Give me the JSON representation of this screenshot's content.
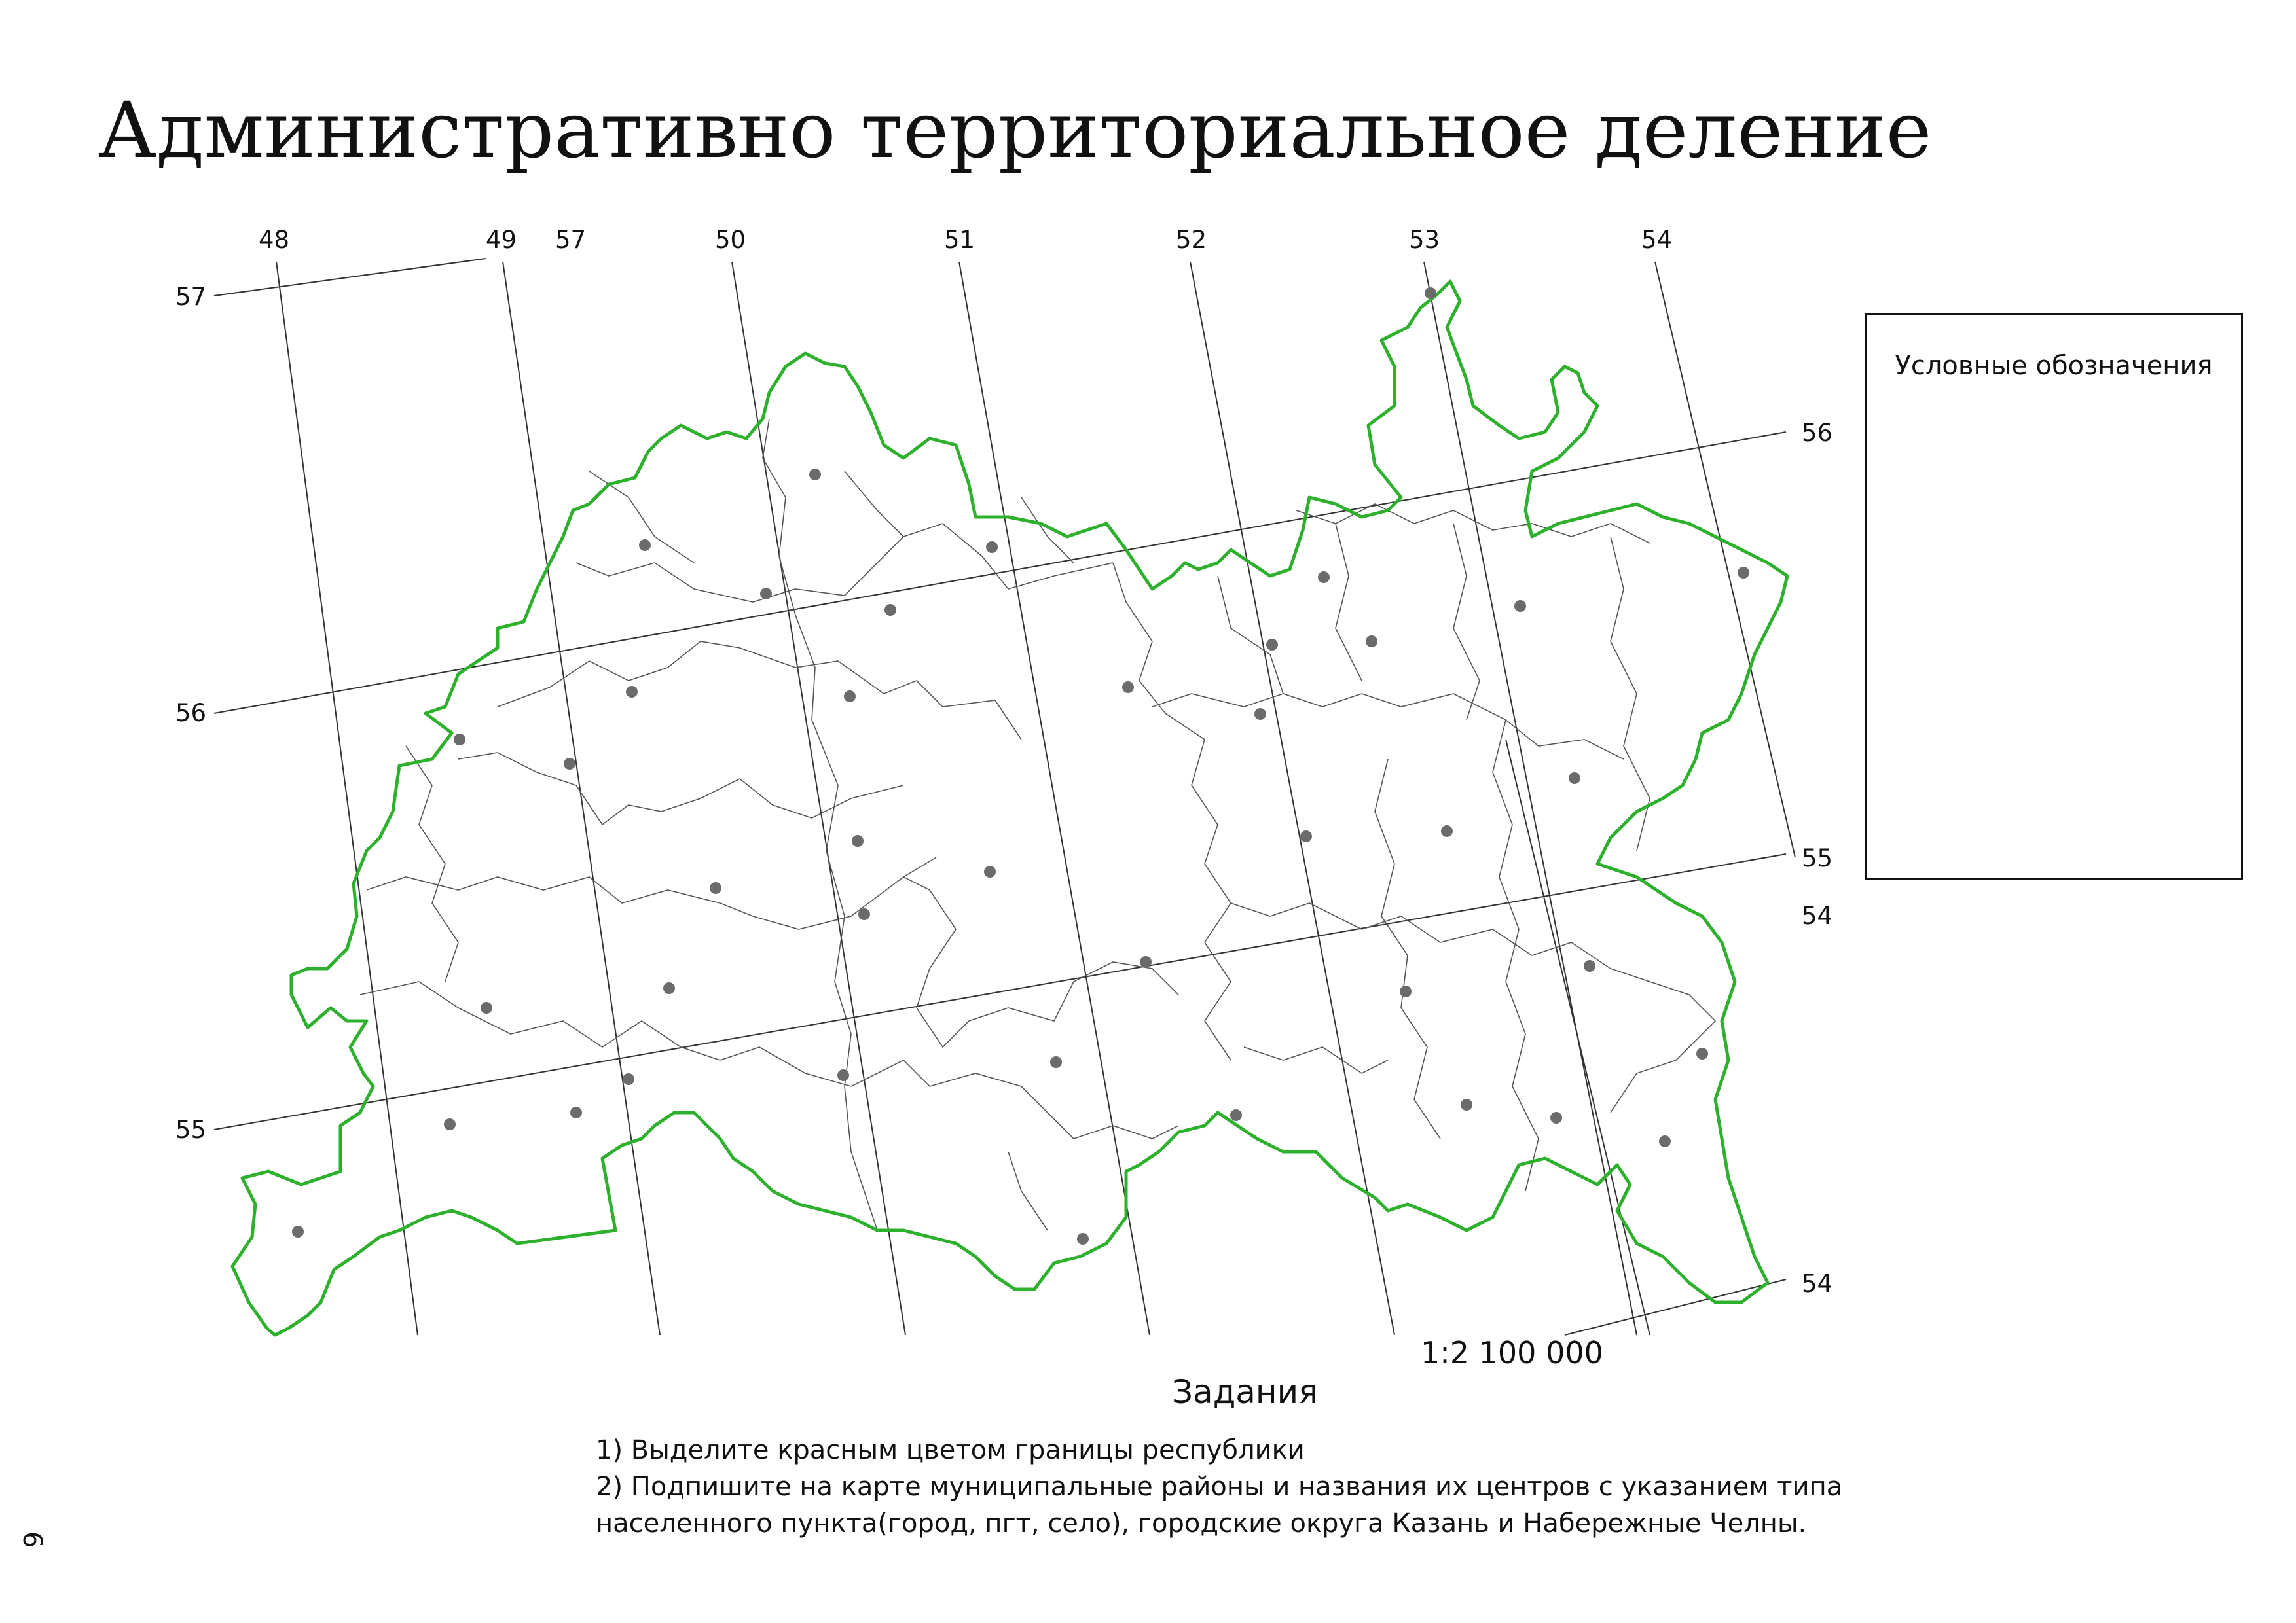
{
  "title": "Административно территориальное деление",
  "colors": {
    "border": "#2db12d",
    "grid": "#333333",
    "districts": "#555555",
    "centers": "#6b6b6b"
  },
  "longitude_labels": [
    "48",
    "49",
    "57",
    "50",
    "51",
    "52",
    "53",
    "54"
  ],
  "latitude_labels": {
    "left": [
      "57",
      "56",
      "55"
    ],
    "right": [
      "56",
      "55",
      "54",
      "54"
    ]
  },
  "legend": {
    "title": "Условные обозначения"
  },
  "scale": "1:2 100 000",
  "tasks": {
    "title": "Задания",
    "items": [
      "1) Выделите красным цветом границы республики",
      "2) Подпишите на карте муниципальные районы и названия их центров с указанием типа\nнаселенного пункта(город, пгт, село), городские округа Казань и Набережные Челны."
    ]
  },
  "page_number": "6",
  "map": {
    "border_icon": "republic-border",
    "district_center_icon": "district-center-dot",
    "district_center_count": 45
  }
}
